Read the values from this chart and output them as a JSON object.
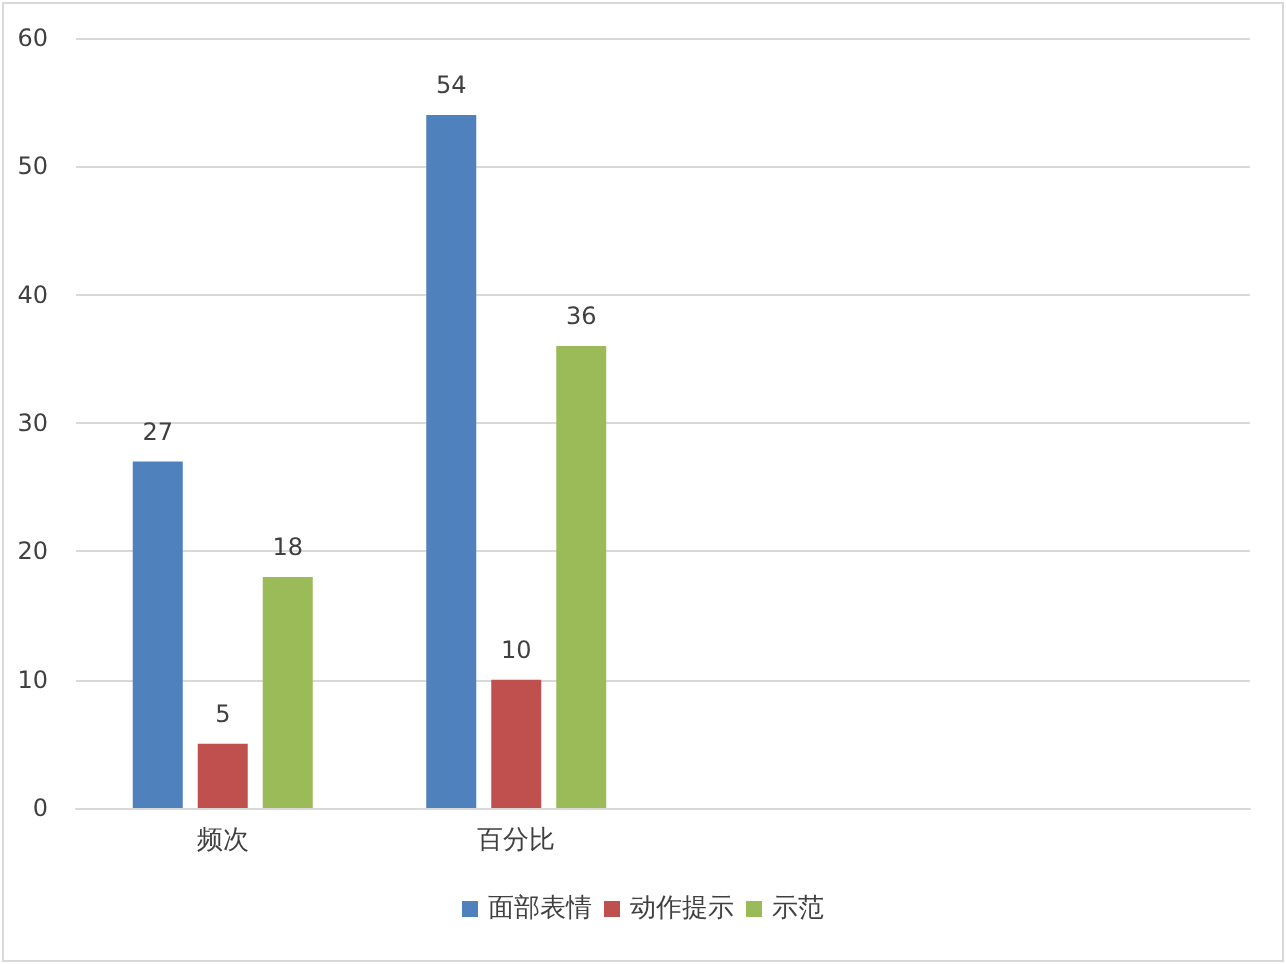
{
  "chart_data": {
    "type": "bar",
    "categories": [
      "频次",
      "百分比",
      null,
      null
    ],
    "series": [
      {
        "name": "面部表情",
        "color": "#4f81bd",
        "values": [
          27,
          54,
          null,
          null
        ]
      },
      {
        "name": "动作提示",
        "color": "#c0504d",
        "values": [
          5,
          10,
          null,
          null
        ]
      },
      {
        "name": "示范",
        "color": "#9bbb59",
        "values": [
          18,
          36,
          null,
          null
        ]
      }
    ],
    "ylim": [
      0,
      60
    ],
    "yticks": [
      0,
      10,
      20,
      30,
      40,
      50,
      60
    ],
    "grid": "y",
    "legend": "bottom",
    "data_labels": true
  }
}
